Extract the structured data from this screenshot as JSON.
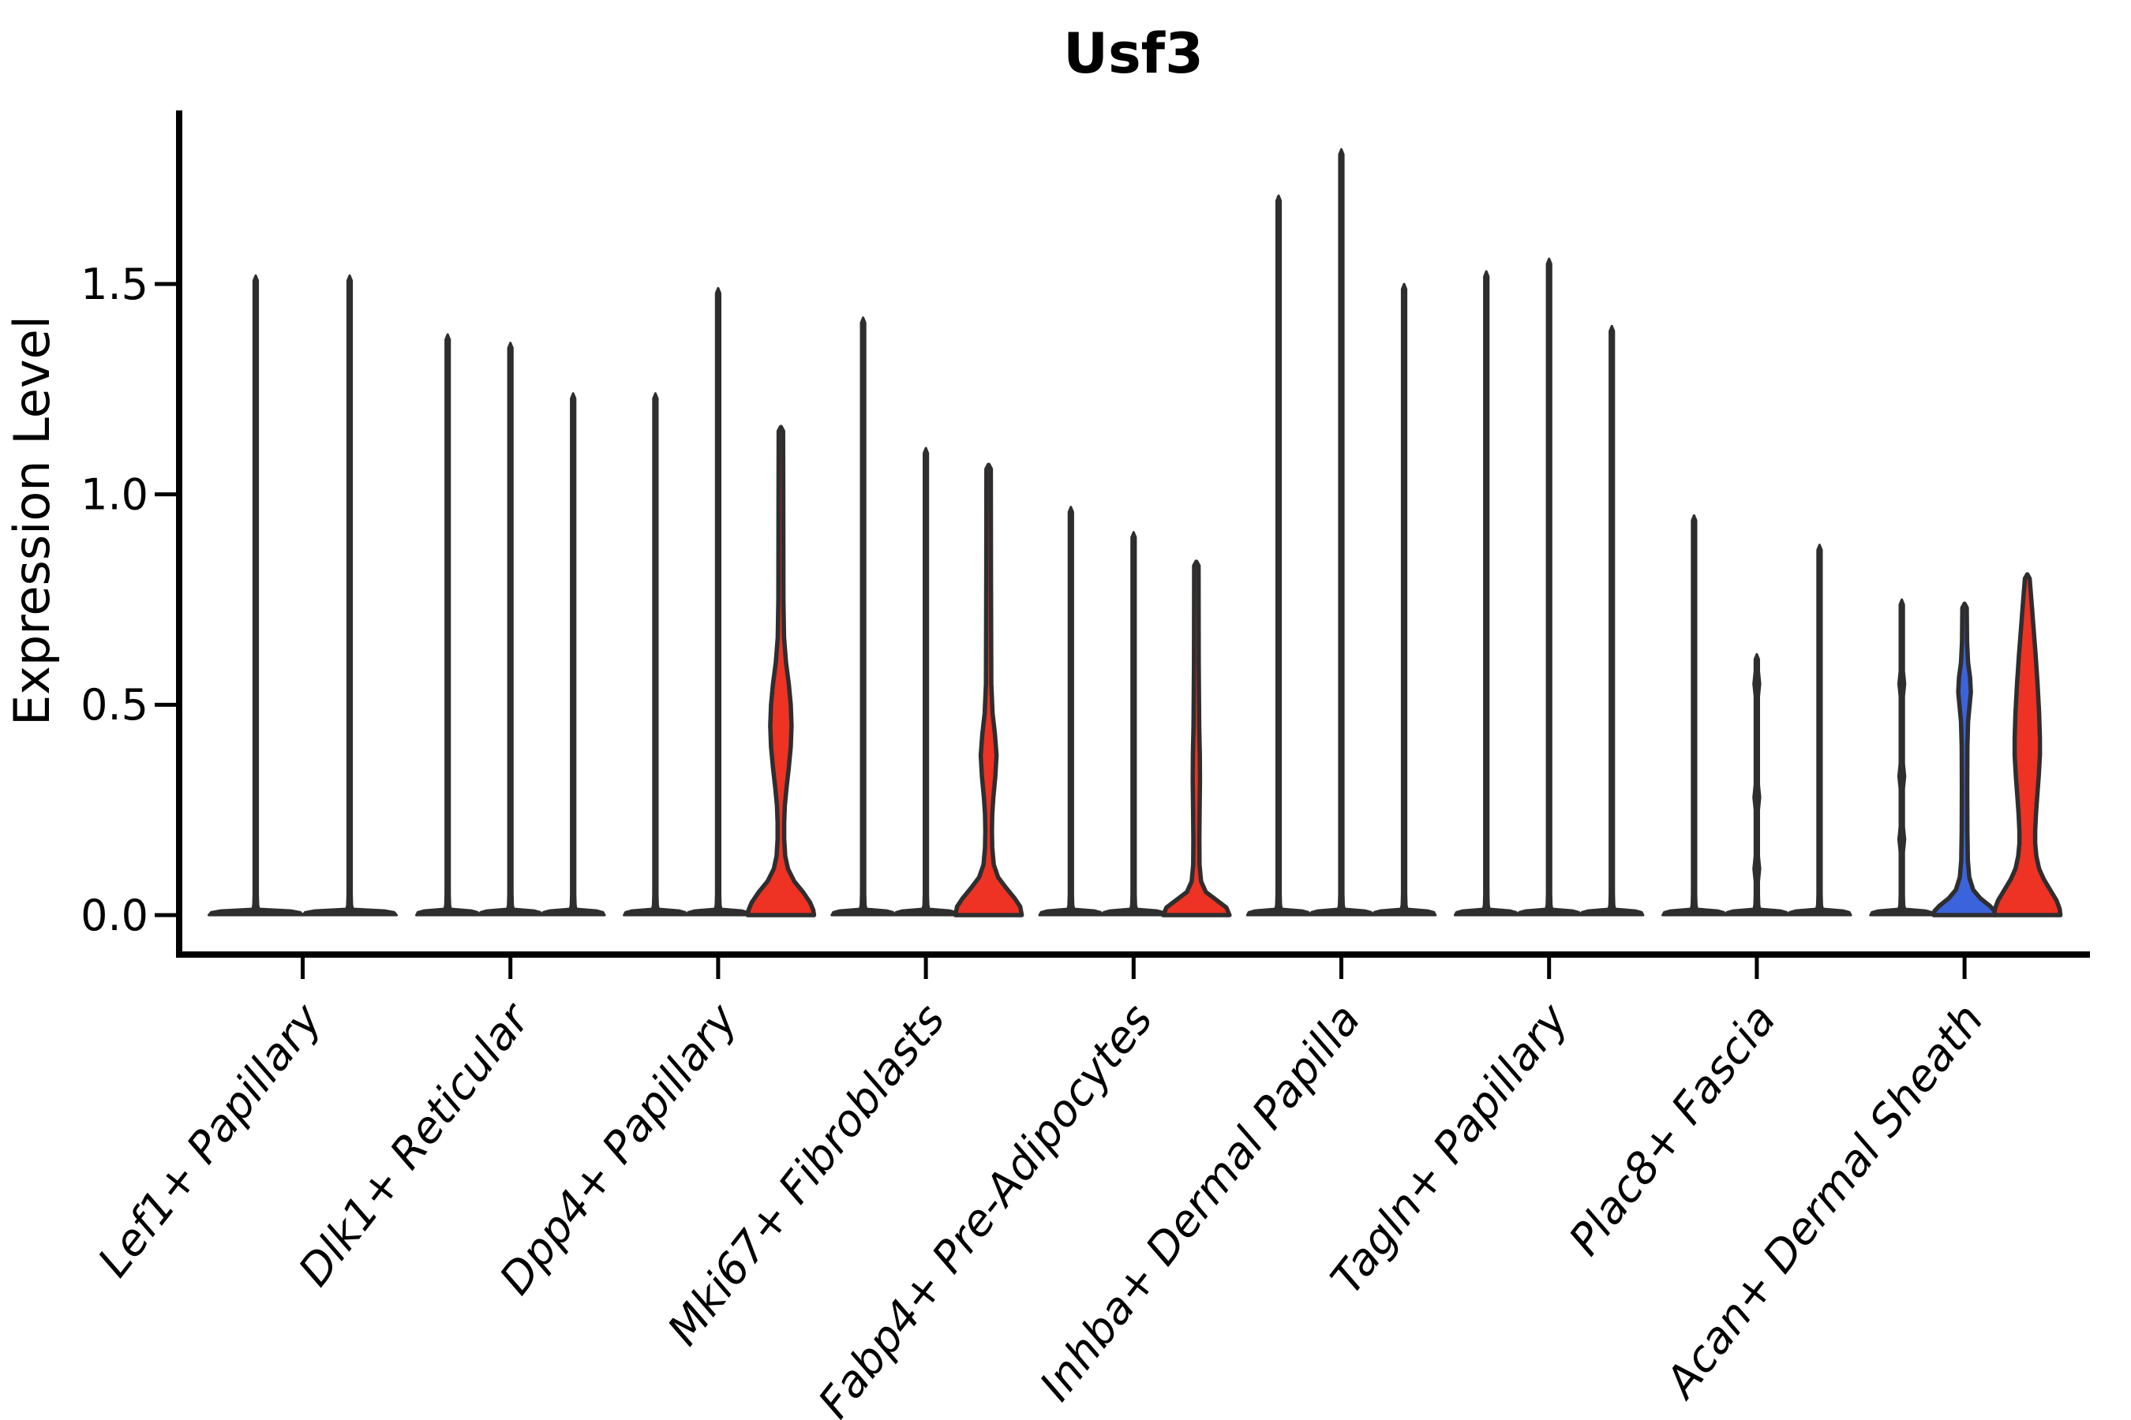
{
  "chart_data": {
    "type": "violin",
    "title": "Usf3",
    "ylabel": "Expression Level",
    "xlabel": "",
    "yticks": [
      0.0,
      0.5,
      1.0,
      1.5
    ],
    "ylim": [
      -0.09,
      1.91
    ],
    "grid": false,
    "legend_position": "none",
    "colors": {
      "line_violin": "#2E2E2E",
      "red": "#EE3224",
      "blue": "#3B63DB",
      "axis": "#000000",
      "text": "#000000"
    },
    "categories": [
      "Lef1+ Papillary",
      "Dlk1+ Reticular",
      "Dpp4+ Papillary",
      "Mki67+ Fibroblasts",
      "Fabp4+ Pre-Adipocytes",
      "Inhba+ Dermal Papilla",
      "Tagln+ Papillary",
      "Plac8+ Fascia",
      "Acan+ Dermal Sheath"
    ],
    "groups": [
      {
        "category": "Lef1+ Papillary",
        "violins": [
          {
            "top": 1.52,
            "color": "dark"
          },
          {
            "top": 1.52,
            "color": "dark"
          }
        ]
      },
      {
        "category": "Dlk1+ Reticular",
        "violins": [
          {
            "top": 1.38,
            "color": "dark"
          },
          {
            "top": 1.36,
            "color": "dark"
          },
          {
            "top": 1.24,
            "color": "dark"
          }
        ]
      },
      {
        "category": "Dpp4+ Papillary",
        "violins": [
          {
            "top": 1.24,
            "color": "dark"
          },
          {
            "top": 1.49,
            "color": "dark"
          },
          {
            "top": 1.16,
            "color": "red",
            "profile": [
              [
                1.16,
                0
              ],
              [
                1.15,
                2.8
              ],
              [
                1.0,
                3.0
              ],
              [
                0.75,
                3.2
              ],
              [
                0.66,
                4.0
              ],
              [
                0.6,
                6.5
              ],
              [
                0.55,
                10
              ],
              [
                0.5,
                12.5
              ],
              [
                0.45,
                13.5
              ],
              [
                0.4,
                12.5
              ],
              [
                0.35,
                10
              ],
              [
                0.3,
                7
              ],
              [
                0.26,
                5
              ],
              [
                0.22,
                4.2
              ],
              [
                0.18,
                4.2
              ],
              [
                0.14,
                5.5
              ],
              [
                0.11,
                9
              ],
              [
                0.08,
                17
              ],
              [
                0.055,
                28
              ],
              [
                0.03,
                37
              ],
              [
                0.012,
                41
              ],
              [
                0,
                42
              ]
            ]
          }
        ]
      },
      {
        "category": "Mki67+ Fibroblasts",
        "violins": [
          {
            "top": 1.42,
            "color": "dark"
          },
          {
            "top": 1.11,
            "color": "dark"
          },
          {
            "top": 1.07,
            "color": "red",
            "profile": [
              [
                1.07,
                0
              ],
              [
                1.06,
                2.8
              ],
              [
                0.8,
                3.0
              ],
              [
                0.55,
                3.4
              ],
              [
                0.48,
                5
              ],
              [
                0.43,
                8
              ],
              [
                0.38,
                10
              ],
              [
                0.33,
                8.5
              ],
              [
                0.28,
                6
              ],
              [
                0.24,
                4.6
              ],
              [
                0.2,
                4.2
              ],
              [
                0.16,
                4.6
              ],
              [
                0.12,
                6.5
              ],
              [
                0.09,
                12
              ],
              [
                0.065,
                22
              ],
              [
                0.04,
                33
              ],
              [
                0.02,
                40
              ],
              [
                0,
                42
              ]
            ]
          }
        ]
      },
      {
        "category": "Fabp4+ Pre-Adipocytes",
        "violins": [
          {
            "top": 0.97,
            "color": "dark"
          },
          {
            "top": 0.91,
            "color": "dark"
          },
          {
            "top": 0.84,
            "color": "red",
            "profile": [
              [
                0.84,
                0
              ],
              [
                0.83,
                2.8
              ],
              [
                0.6,
                3.0
              ],
              [
                0.45,
                3.6
              ],
              [
                0.38,
                4.4
              ],
              [
                0.32,
                4.6
              ],
              [
                0.26,
                4.2
              ],
              [
                0.18,
                3.8
              ],
              [
                0.12,
                4.0
              ],
              [
                0.08,
                6
              ],
              [
                0.055,
                12
              ],
              [
                0.035,
                26
              ],
              [
                0.018,
                38
              ],
              [
                0,
                42
              ]
            ]
          }
        ]
      },
      {
        "category": "Inhba+ Dermal Papilla",
        "violins": [
          {
            "top": 1.71,
            "color": "dark"
          },
          {
            "top": 1.82,
            "color": "dark"
          },
          {
            "top": 1.5,
            "color": "dark"
          }
        ]
      },
      {
        "category": "Tagln+ Papillary",
        "violins": [
          {
            "top": 1.53,
            "color": "dark"
          },
          {
            "top": 1.56,
            "color": "dark"
          },
          {
            "top": 1.4,
            "color": "dark"
          }
        ]
      },
      {
        "category": "Plac8+ Fascia",
        "violins": [
          {
            "top": 0.95,
            "color": "dark"
          },
          {
            "top": 0.62,
            "color": "dark",
            "bumps": [
              0.55,
              0.28,
              0.11
            ]
          },
          {
            "top": 0.88,
            "color": "dark"
          }
        ]
      },
      {
        "category": "Acan+ Dermal Sheath",
        "violins": [
          {
            "top": 0.75,
            "color": "dark",
            "bumps": [
              0.55,
              0.33,
              0.18
            ]
          },
          {
            "top": 0.74,
            "color": "blue",
            "profile": [
              [
                0.74,
                0
              ],
              [
                0.73,
                2.8
              ],
              [
                0.65,
                3.2
              ],
              [
                0.6,
                4.5
              ],
              [
                0.565,
                7
              ],
              [
                0.53,
                8
              ],
              [
                0.5,
                6.5
              ],
              [
                0.46,
                4.5
              ],
              [
                0.4,
                3.6
              ],
              [
                0.3,
                3.4
              ],
              [
                0.2,
                3.6
              ],
              [
                0.13,
                4.2
              ],
              [
                0.09,
                6
              ],
              [
                0.06,
                11
              ],
              [
                0.04,
                20
              ],
              [
                0.022,
                32
              ],
              [
                0.01,
                38
              ],
              [
                0,
                39
              ]
            ]
          },
          {
            "top": 0.81,
            "color": "red",
            "profile": [
              [
                0.81,
                0
              ],
              [
                0.8,
                3
              ],
              [
                0.765,
                4.5
              ],
              [
                0.73,
                6
              ],
              [
                0.68,
                8
              ],
              [
                0.62,
                10.5
              ],
              [
                0.55,
                13
              ],
              [
                0.48,
                15
              ],
              [
                0.42,
                16
              ],
              [
                0.38,
                16
              ],
              [
                0.33,
                14.5
              ],
              [
                0.28,
                12.5
              ],
              [
                0.24,
                11
              ],
              [
                0.2,
                10
              ],
              [
                0.17,
                10
              ],
              [
                0.14,
                11.5
              ],
              [
                0.11,
                15
              ],
              [
                0.085,
                21
              ],
              [
                0.06,
                29
              ],
              [
                0.035,
                37
              ],
              [
                0.015,
                41
              ],
              [
                0,
                42
              ]
            ]
          }
        ]
      }
    ]
  }
}
